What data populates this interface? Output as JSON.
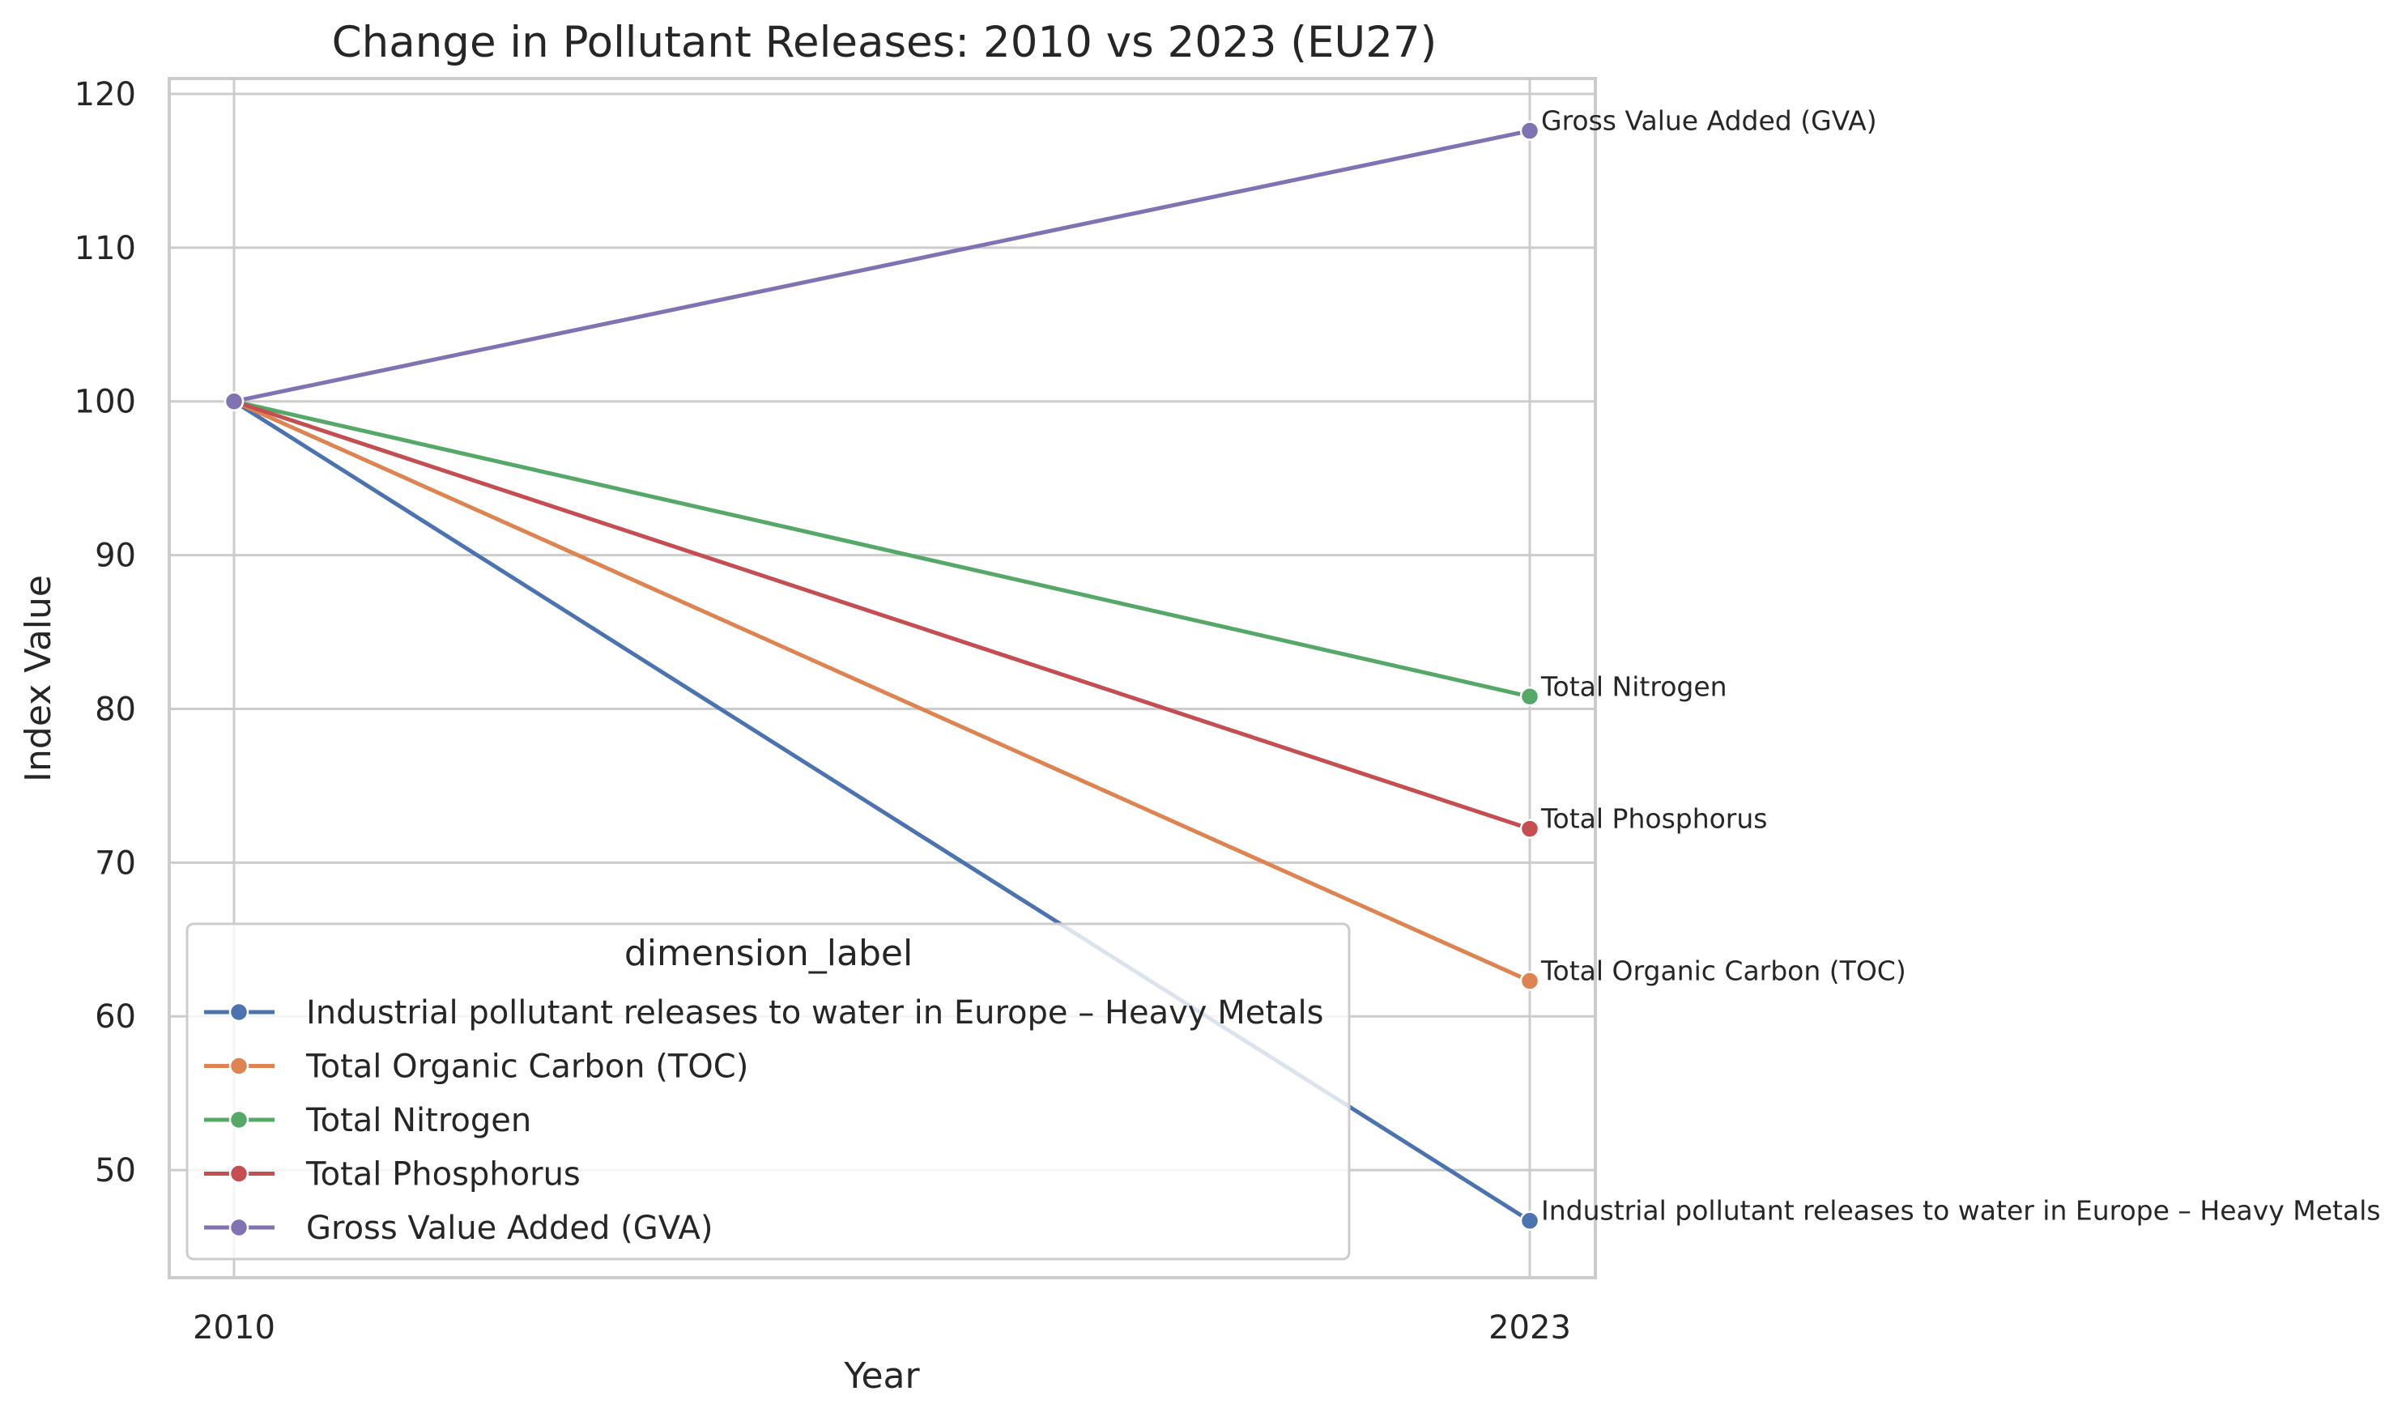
{
  "chart_data": {
    "type": "line",
    "title": "Change in Pollutant Releases: 2010 vs 2023 (EU27)",
    "xlabel": "Year",
    "ylabel": "Index Value",
    "x": [
      "2010",
      "2023"
    ],
    "ylim": [
      43,
      121
    ],
    "yticks": [
      50,
      60,
      70,
      80,
      90,
      100,
      110,
      120
    ],
    "grid": true,
    "legend": {
      "title": "dimension_label",
      "position": "lower-left"
    },
    "series": [
      {
        "name": "Industrial pollutant releases to water in Europe – Heavy Metals",
        "values": [
          100,
          46.7
        ],
        "color": "#4c72b0"
      },
      {
        "name": "Total Organic Carbon (TOC)",
        "values": [
          100,
          62.3
        ],
        "color": "#dd8452"
      },
      {
        "name": "Total Nitrogen",
        "values": [
          100,
          80.8
        ],
        "color": "#55a868"
      },
      {
        "name": "Total Phosphorus",
        "values": [
          100,
          72.2
        ],
        "color": "#c44e52"
      },
      {
        "name": "Gross Value Added (GVA)",
        "values": [
          100,
          117.6
        ],
        "color": "#8172b3"
      }
    ],
    "annotations": [
      {
        "text": "Gross Value Added (GVA)",
        "series": 4
      },
      {
        "text": "Total Nitrogen",
        "series": 2
      },
      {
        "text": "Total Phosphorus",
        "series": 3
      },
      {
        "text": "Total Organic Carbon (TOC)",
        "series": 1
      },
      {
        "text": "Industrial pollutant releases to water in Europe – Heavy Metals",
        "series": 0
      }
    ]
  }
}
